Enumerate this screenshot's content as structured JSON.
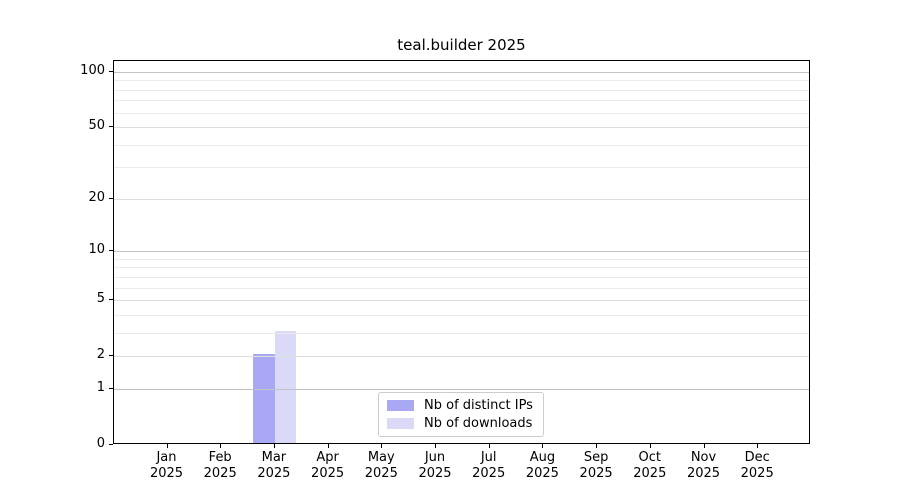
{
  "chart_data": {
    "type": "bar",
    "title": "teal.builder 2025",
    "categories": [
      "Jan",
      "Feb",
      "Mar",
      "Apr",
      "May",
      "Jun",
      "Jul",
      "Aug",
      "Sep",
      "Oct",
      "Nov",
      "Dec"
    ],
    "x_year_label": "2025",
    "series": [
      {
        "name": "Nb of distinct IPs",
        "color": "#a8a8f4",
        "values": [
          0,
          0,
          2,
          0,
          0,
          0,
          0,
          0,
          0,
          0,
          0,
          0
        ]
      },
      {
        "name": "Nb of downloads",
        "color": "#dadaf8",
        "values": [
          0,
          0,
          3,
          0,
          0,
          0,
          0,
          0,
          0,
          0,
          0,
          0
        ]
      }
    ],
    "y_scale": "log1p",
    "y_ticks": [
      0,
      1,
      2,
      5,
      10,
      20,
      50,
      100
    ],
    "y_decade_ticks": [
      1,
      10,
      100
    ],
    "y_minor_ticks": [
      3,
      4,
      6,
      7,
      8,
      9,
      30,
      40,
      60,
      70,
      80,
      90
    ],
    "ylim": [
      0,
      115
    ],
    "grid": true,
    "legend_position": "inside-bottom-center"
  }
}
